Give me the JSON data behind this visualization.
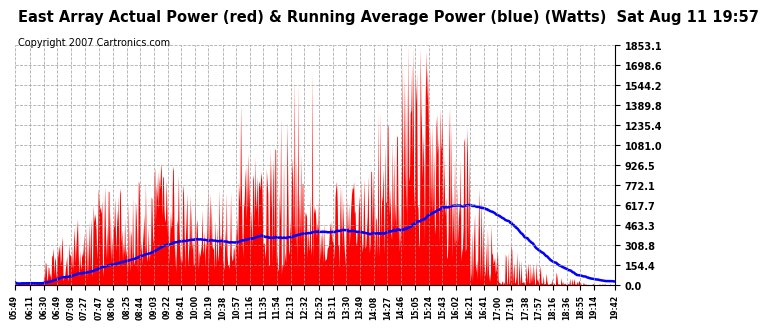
{
  "title": "East Array Actual Power (red) & Running Average Power (blue) (Watts)  Sat Aug 11 19:57",
  "copyright": "Copyright 2007 Cartronics.com",
  "yticks": [
    0.0,
    154.4,
    308.8,
    463.3,
    617.7,
    772.1,
    926.5,
    1081.0,
    1235.4,
    1389.8,
    1544.2,
    1698.6,
    1853.1
  ],
  "ymax": 1853.1,
  "ymin": 0.0,
  "fill_color": "red",
  "avg_color": "blue",
  "bg_color": "white",
  "grid_color": "#999999",
  "title_fontsize": 10.5,
  "copyright_fontsize": 7,
  "x_labels": [
    "05:49",
    "06:11",
    "06:30",
    "06:49",
    "07:08",
    "07:27",
    "07:47",
    "08:06",
    "08:25",
    "08:44",
    "09:03",
    "09:22",
    "09:41",
    "10:00",
    "10:19",
    "10:38",
    "10:57",
    "11:16",
    "11:35",
    "11:54",
    "12:13",
    "12:32",
    "12:52",
    "13:11",
    "13:30",
    "13:49",
    "14:08",
    "14:27",
    "14:46",
    "15:05",
    "15:24",
    "15:43",
    "16:02",
    "16:21",
    "16:41",
    "17:00",
    "17:19",
    "17:38",
    "17:57",
    "18:16",
    "18:36",
    "18:55",
    "19:14",
    "19:42"
  ]
}
